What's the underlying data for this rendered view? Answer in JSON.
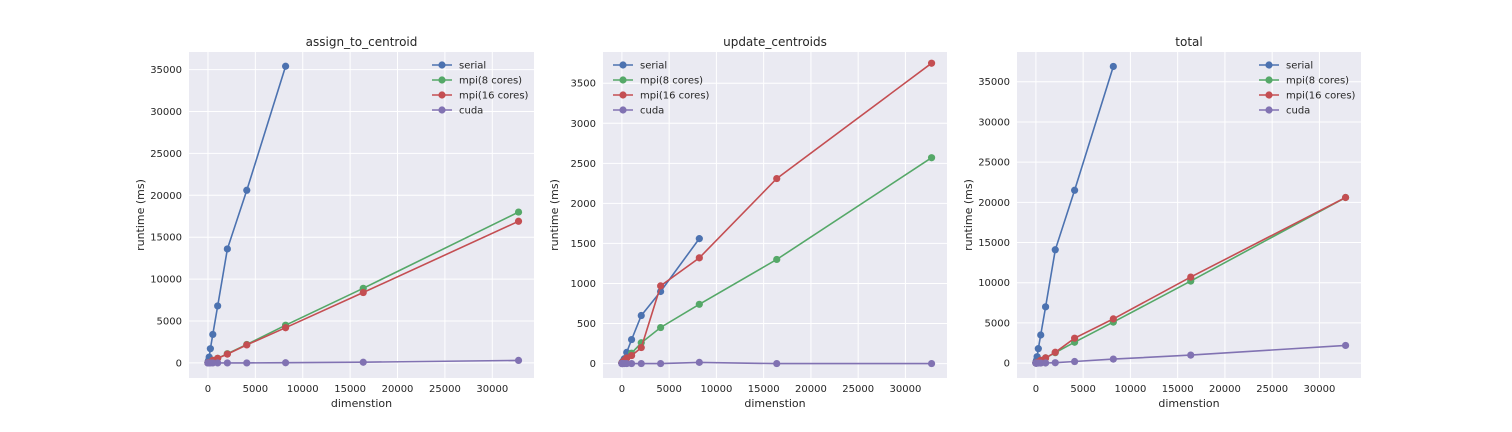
{
  "chart_data": [
    {
      "type": "line",
      "title": "assign_to_centroid",
      "xlabel": "dimenstion",
      "ylabel": "runtime (ms)",
      "xlim": [
        -2000,
        34400
      ],
      "ylim": [
        -1800,
        37100
      ],
      "xticks": [
        0,
        5000,
        10000,
        15000,
        20000,
        25000,
        30000
      ],
      "yticks": [
        0,
        5000,
        10000,
        15000,
        20000,
        25000,
        30000,
        35000
      ],
      "grid": true,
      "legend": "top-right",
      "series": [
        {
          "name": "serial",
          "color": "#4c72b0",
          "x": [
            2,
            4,
            8,
            16,
            32,
            64,
            128,
            256,
            512,
            1024,
            2048,
            4096,
            8192
          ],
          "y": [
            50,
            60,
            70,
            100,
            160,
            300,
            700,
            1700,
            3400,
            6800,
            13600,
            20600,
            35400
          ]
        },
        {
          "name": "mpi(8 cores)",
          "color": "#55a868",
          "x": [
            2,
            4,
            8,
            16,
            32,
            64,
            128,
            256,
            512,
            1024,
            2048,
            4096,
            8192,
            16384,
            32768
          ],
          "y": [
            10,
            10,
            10,
            10,
            20,
            30,
            40,
            80,
            300,
            550,
            1100,
            2200,
            4500,
            8900,
            18000
          ]
        },
        {
          "name": "mpi(16 cores)",
          "color": "#c44e52",
          "x": [
            2,
            4,
            8,
            16,
            32,
            64,
            128,
            256,
            512,
            1024,
            2048,
            4096,
            8192,
            16384,
            32768
          ],
          "y": [
            10,
            10,
            10,
            10,
            20,
            30,
            40,
            80,
            300,
            550,
            1050,
            2150,
            4200,
            8400,
            16900
          ]
        },
        {
          "name": "cuda",
          "color": "#8172b2",
          "x": [
            2,
            4,
            8,
            16,
            32,
            64,
            128,
            256,
            512,
            1024,
            2048,
            4096,
            8192,
            16384,
            32768
          ],
          "y": [
            0,
            0,
            0,
            0,
            0,
            0,
            0,
            0,
            0,
            0,
            0,
            0,
            20,
            80,
            300
          ]
        }
      ]
    },
    {
      "type": "line",
      "title": "update_centroids",
      "xlabel": "dimenstion",
      "ylabel": "runtime (ms)",
      "xlim": [
        -2000,
        34400
      ],
      "ylim": [
        -180,
        3890
      ],
      "xticks": [
        0,
        5000,
        10000,
        15000,
        20000,
        25000,
        30000
      ],
      "yticks": [
        0,
        500,
        1000,
        1500,
        2000,
        2500,
        3000,
        3500
      ],
      "grid": true,
      "legend": "top-left",
      "series": [
        {
          "name": "serial",
          "color": "#4c72b0",
          "x": [
            2,
            4,
            8,
            16,
            32,
            64,
            128,
            256,
            512,
            1024,
            2048,
            4096,
            8192
          ],
          "y": [
            5,
            6,
            8,
            10,
            15,
            20,
            30,
            60,
            140,
            300,
            600,
            900,
            1560
          ]
        },
        {
          "name": "mpi(8 cores)",
          "color": "#55a868",
          "x": [
            2,
            4,
            8,
            16,
            32,
            64,
            128,
            256,
            512,
            1024,
            2048,
            4096,
            8192,
            16384,
            32768
          ],
          "y": [
            5,
            5,
            5,
            5,
            10,
            15,
            20,
            40,
            70,
            130,
            260,
            450,
            740,
            1300,
            2570
          ]
        },
        {
          "name": "mpi(16 cores)",
          "color": "#c44e52",
          "x": [
            2,
            4,
            8,
            16,
            32,
            64,
            128,
            256,
            512,
            1024,
            2048,
            4096,
            8192,
            16384,
            32768
          ],
          "y": [
            5,
            5,
            5,
            5,
            10,
            15,
            20,
            40,
            70,
            100,
            200,
            970,
            1320,
            2310,
            3750
          ]
        },
        {
          "name": "cuda",
          "color": "#8172b2",
          "x": [
            2,
            4,
            8,
            16,
            32,
            64,
            128,
            256,
            512,
            1024,
            2048,
            4096,
            8192,
            16384,
            32768
          ],
          "y": [
            0,
            0,
            0,
            0,
            0,
            0,
            0,
            0,
            0,
            0,
            0,
            0,
            15,
            0,
            0
          ]
        }
      ]
    },
    {
      "type": "line",
      "title": "total",
      "xlabel": "dimenstion",
      "ylabel": "runtime (ms)",
      "xlim": [
        -2000,
        34400
      ],
      "ylim": [
        -1850,
        38700
      ],
      "xticks": [
        0,
        5000,
        10000,
        15000,
        20000,
        25000,
        30000
      ],
      "yticks": [
        0,
        5000,
        10000,
        15000,
        20000,
        25000,
        30000,
        35000
      ],
      "grid": true,
      "legend": "top-right",
      "series": [
        {
          "name": "serial",
          "color": "#4c72b0",
          "x": [
            2,
            4,
            8,
            16,
            32,
            64,
            128,
            256,
            512,
            1024,
            2048,
            4096,
            8192
          ],
          "y": [
            60,
            70,
            90,
            120,
            200,
            350,
            800,
            1800,
            3500,
            7000,
            14100,
            21500,
            36900
          ]
        },
        {
          "name": "mpi(8 cores)",
          "color": "#55a868",
          "x": [
            2,
            4,
            8,
            16,
            32,
            64,
            128,
            256,
            512,
            1024,
            2048,
            4096,
            8192,
            16384,
            32768
          ],
          "y": [
            10,
            10,
            20,
            20,
            30,
            50,
            80,
            150,
            350,
            650,
            1300,
            2600,
            5100,
            10200,
            20600
          ]
        },
        {
          "name": "mpi(16 cores)",
          "color": "#c44e52",
          "x": [
            2,
            4,
            8,
            16,
            32,
            64,
            128,
            256,
            512,
            1024,
            2048,
            4096,
            8192,
            16384,
            32768
          ],
          "y": [
            10,
            10,
            20,
            20,
            30,
            50,
            80,
            150,
            350,
            650,
            1350,
            3100,
            5500,
            10700,
            20600
          ]
        },
        {
          "name": "cuda",
          "color": "#8172b2",
          "x": [
            2,
            4,
            8,
            16,
            32,
            64,
            128,
            256,
            512,
            1024,
            2048,
            4096,
            8192,
            16384,
            32768
          ],
          "y": [
            0,
            0,
            0,
            0,
            0,
            0,
            0,
            5,
            10,
            20,
            50,
            200,
            500,
            1000,
            2200
          ]
        }
      ]
    }
  ]
}
